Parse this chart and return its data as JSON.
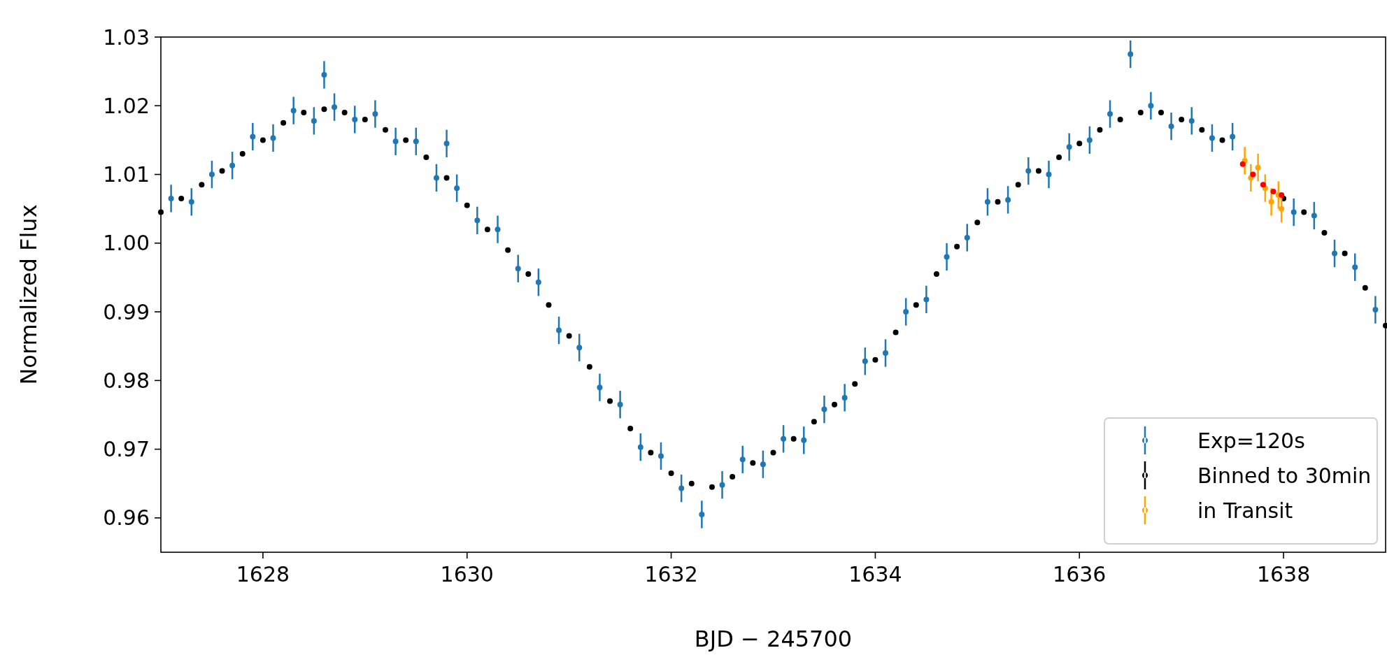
{
  "chart_data": {
    "type": "scatter",
    "xlabel": "BJD − 245700",
    "ylabel": "Normalized Flux",
    "xlim": [
      1627,
      1639
    ],
    "ylim": [
      0.955,
      1.03
    ],
    "xticks": [
      1628,
      1630,
      1632,
      1634,
      1636,
      1638
    ],
    "yticks": [
      {
        "value": 0.96,
        "label": "0.96"
      },
      {
        "value": 0.97,
        "label": "0.97"
      },
      {
        "value": 0.98,
        "label": "0.98"
      },
      {
        "value": 0.99,
        "label": "0.99"
      },
      {
        "value": 1.0,
        "label": "1.00"
      },
      {
        "value": 1.01,
        "label": "1.01"
      },
      {
        "value": 1.02,
        "label": "1.02"
      },
      {
        "value": 1.03,
        "label": "1.03"
      }
    ],
    "legend": "bottom right",
    "marker": "circle",
    "series": [
      {
        "name": "Exp=120s",
        "color": "#1f77b4",
        "x": [
          1627.1,
          1627.3,
          1627.5,
          1627.7,
          1627.9,
          1628.1,
          1628.3,
          1628.5,
          1628.6,
          1628.7,
          1628.9,
          1629.1,
          1629.3,
          1629.5,
          1629.7,
          1629.8,
          1629.9,
          1630.1,
          1630.3,
          1630.5,
          1630.7,
          1630.9,
          1631.1,
          1631.3,
          1631.5,
          1631.7,
          1631.9,
          1632.1,
          1632.3,
          1632.5,
          1632.7,
          1632.9,
          1633.1,
          1633.3,
          1633.5,
          1633.7,
          1633.9,
          1634.1,
          1634.3,
          1634.5,
          1634.7,
          1634.9,
          1635.1,
          1635.3,
          1635.5,
          1635.7,
          1635.9,
          1636.1,
          1636.3,
          1636.5,
          1636.7,
          1636.9,
          1637.1,
          1637.3,
          1637.5,
          1638.1,
          1638.3,
          1638.5,
          1638.7,
          1638.9
        ],
        "values": [
          1.0065,
          1.006,
          1.01,
          1.0113,
          1.0155,
          1.0153,
          1.0193,
          1.0178,
          1.0245,
          1.0198,
          1.018,
          1.0188,
          1.0148,
          1.0148,
          1.0095,
          1.0145,
          1.008,
          1.0033,
          1.002,
          0.9963,
          0.9943,
          0.9873,
          0.9848,
          0.979,
          0.9765,
          0.9703,
          0.969,
          0.9643,
          0.9605,
          0.9648,
          0.9685,
          0.9678,
          0.9715,
          0.9713,
          0.9758,
          0.9775,
          0.9828,
          0.984,
          0.99,
          0.9918,
          0.998,
          1.0008,
          1.006,
          1.0063,
          1.0105,
          1.01,
          1.014,
          1.015,
          1.0188,
          1.0275,
          1.02,
          1.017,
          1.0178,
          1.0153,
          1.0155,
          1.0045,
          1.004,
          0.9985,
          0.9965,
          0.9903
        ],
        "errors": [
          0.002,
          0.002,
          0.002,
          0.002,
          0.002,
          0.002,
          0.002,
          0.002,
          0.002,
          0.002,
          0.002,
          0.002,
          0.002,
          0.002,
          0.002,
          0.002,
          0.002,
          0.002,
          0.002,
          0.002,
          0.002,
          0.002,
          0.002,
          0.002,
          0.002,
          0.002,
          0.002,
          0.002,
          0.002,
          0.002,
          0.002,
          0.002,
          0.002,
          0.002,
          0.002,
          0.002,
          0.002,
          0.002,
          0.002,
          0.002,
          0.002,
          0.002,
          0.002,
          0.002,
          0.002,
          0.002,
          0.002,
          0.002,
          0.002,
          0.002,
          0.002,
          0.002,
          0.002,
          0.002,
          0.002,
          0.002,
          0.002,
          0.002,
          0.002,
          0.002
        ]
      },
      {
        "name": "Binned to 30min",
        "color": "#000000",
        "x": [
          1627.0,
          1627.2,
          1627.4,
          1627.6,
          1627.8,
          1628.0,
          1628.2,
          1628.4,
          1628.6,
          1628.8,
          1629.0,
          1629.2,
          1629.4,
          1629.6,
          1629.8,
          1630.0,
          1630.2,
          1630.4,
          1630.6,
          1630.8,
          1631.0,
          1631.2,
          1631.4,
          1631.6,
          1631.8,
          1632.0,
          1632.2,
          1632.4,
          1632.6,
          1632.8,
          1633.0,
          1633.2,
          1633.4,
          1633.6,
          1633.8,
          1634.0,
          1634.2,
          1634.4,
          1634.6,
          1634.8,
          1635.0,
          1635.2,
          1635.4,
          1635.6,
          1635.8,
          1636.0,
          1636.2,
          1636.4,
          1636.6,
          1636.8,
          1637.0,
          1637.2,
          1637.4,
          1638.0,
          1638.2,
          1638.4,
          1638.6,
          1638.8,
          1639.0
        ],
        "values": [
          1.0045,
          1.0065,
          1.0085,
          1.0105,
          1.013,
          1.015,
          1.0175,
          1.019,
          1.0195,
          1.019,
          1.018,
          1.0165,
          1.015,
          1.0125,
          1.0095,
          1.0055,
          1.002,
          0.999,
          0.9955,
          0.991,
          0.9865,
          0.982,
          0.977,
          0.973,
          0.9695,
          0.9665,
          0.965,
          0.9645,
          0.966,
          0.968,
          0.9695,
          0.9715,
          0.974,
          0.9765,
          0.9795,
          0.983,
          0.987,
          0.991,
          0.9955,
          0.9995,
          1.003,
          1.006,
          1.0085,
          1.0105,
          1.0125,
          1.0145,
          1.0165,
          1.018,
          1.019,
          1.019,
          1.018,
          1.0165,
          1.015,
          1.0065,
          1.0045,
          1.0015,
          0.9985,
          0.9935,
          0.988
        ]
      },
      {
        "name": "in Transit",
        "color": "#ffa500",
        "x": [
          1637.62,
          1637.68,
          1637.75,
          1637.82,
          1637.88,
          1637.95,
          1637.98
        ],
        "values": [
          1.012,
          1.0095,
          1.011,
          1.008,
          1.006,
          1.007,
          1.005
        ],
        "errors": [
          0.002,
          0.002,
          0.002,
          0.002,
          0.002,
          0.002,
          0.002
        ]
      },
      {
        "color": "#ff0000",
        "x": [
          1637.6,
          1637.7,
          1637.8,
          1637.9,
          1637.98
        ],
        "values": [
          1.0115,
          1.01,
          1.0085,
          1.0075,
          1.007
        ]
      }
    ]
  }
}
